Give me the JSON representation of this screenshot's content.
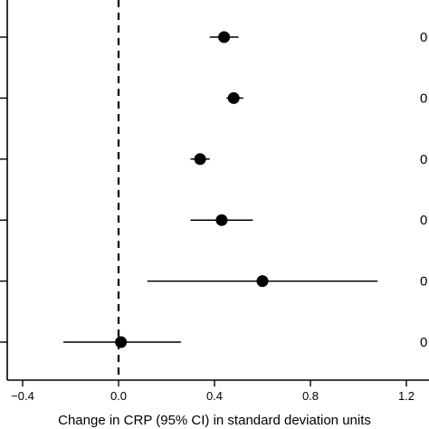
{
  "chart_data": {
    "type": "scatter",
    "xlabel": "Change in CRP (95% CI) in standard deviation units",
    "ylabel": "",
    "title": "",
    "xlim": [
      -0.47,
      1.2
    ],
    "x_ticks": [
      -0.4,
      0.0,
      0.4,
      0.8,
      1.2
    ],
    "x_tick_labels": [
      "−0.4",
      "0.0",
      "0.4",
      "0.8",
      "1.2"
    ],
    "reference_line": {
      "x": 0,
      "style": "dashed"
    },
    "grid": false,
    "points": [
      {
        "estimate": 0.44,
        "lower": 0.38,
        "upper": 0.5,
        "right_label": "0"
      },
      {
        "estimate": 0.48,
        "lower": 0.45,
        "upper": 0.52,
        "right_label": "0"
      },
      {
        "estimate": 0.34,
        "lower": 0.3,
        "upper": 0.38,
        "right_label": "0"
      },
      {
        "estimate": 0.43,
        "lower": 0.3,
        "upper": 0.56,
        "right_label": "0"
      },
      {
        "estimate": 0.6,
        "lower": 0.12,
        "upper": 1.08,
        "right_label": "0"
      },
      {
        "estimate": 0.01,
        "lower": -0.23,
        "upper": 0.26,
        "right_label": "0"
      }
    ],
    "colors": {
      "marker": "#000000",
      "line": "#000000",
      "axis": "#000000"
    }
  }
}
